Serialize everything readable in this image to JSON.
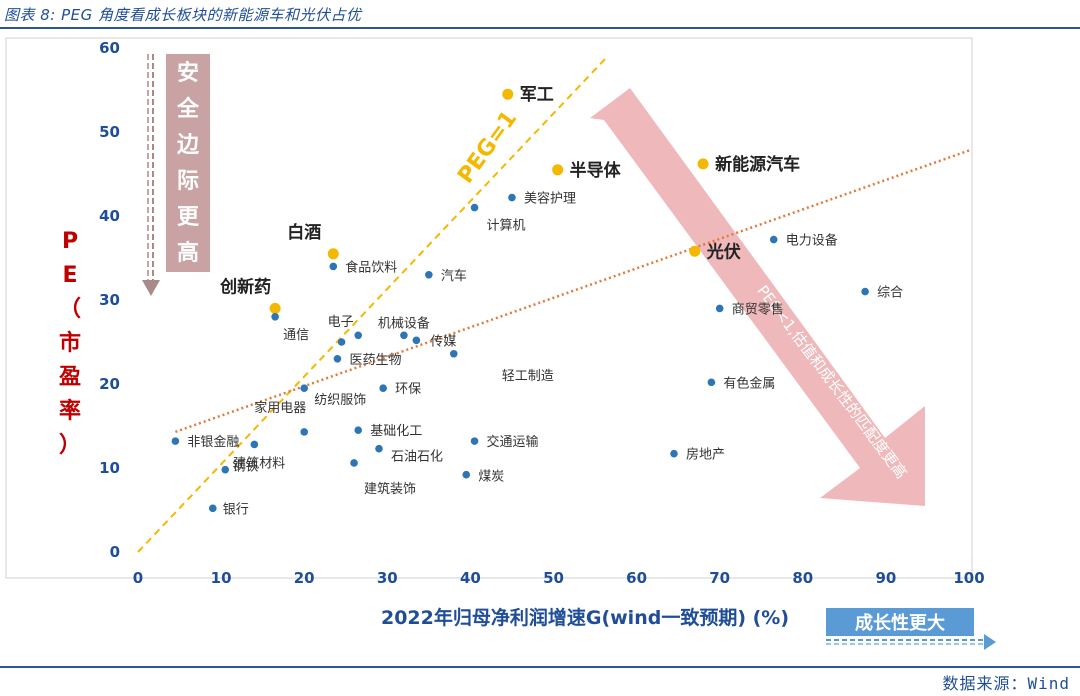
{
  "header": {
    "title": "图表 8: PEG 角度看成长板块的新能源车和光伏占优"
  },
  "footer": {
    "source": "数据来源：Wind"
  },
  "chart_data": {
    "type": "scatter",
    "title": "",
    "xlabel": "2022年归母净利润增速G(wind一致预期) (%)",
    "ylabel": "PE（市盈率）",
    "xlim": [
      0,
      100
    ],
    "ylim": [
      0,
      60
    ],
    "xticks": [
      0,
      10,
      20,
      30,
      40,
      50,
      60,
      70,
      80,
      90,
      100
    ],
    "yticks": [
      0,
      10,
      20,
      30,
      40,
      50,
      60
    ],
    "grid": false,
    "colors": {
      "normal": "#2e75b6",
      "highlight": "#f5b800",
      "peg_line": "#f5b800",
      "trend_line": "#e07b39",
      "arrow_red": "#e9a3a6",
      "arrow_blue": "#5b9bd5",
      "axis_text": "#1f4e96",
      "ylabel": "#c00000"
    },
    "points": [
      {
        "label": "军工",
        "x": 44.5,
        "y": 54.5,
        "highlight": true
      },
      {
        "label": "半导体",
        "x": 50.5,
        "y": 45.5,
        "highlight": true
      },
      {
        "label": "新能源汽车",
        "x": 68,
        "y": 46.2,
        "highlight": true
      },
      {
        "label": "白酒",
        "x": 23.5,
        "y": 35.5,
        "highlight": true
      },
      {
        "label": "创新药",
        "x": 16.5,
        "y": 29,
        "highlight": true
      },
      {
        "label": "光伏",
        "x": 67,
        "y": 35.8,
        "highlight": true
      },
      {
        "label": "美容护理",
        "x": 45,
        "y": 42.2,
        "highlight": false
      },
      {
        "label": "计算机",
        "x": 40.5,
        "y": 41,
        "highlight": false
      },
      {
        "label": "电力设备",
        "x": 76.5,
        "y": 37.2,
        "highlight": false
      },
      {
        "label": "食品饮料",
        "x": 23.5,
        "y": 34,
        "highlight": false
      },
      {
        "label": "汽车",
        "x": 35,
        "y": 33,
        "highlight": false
      },
      {
        "label": "综合",
        "x": 87.5,
        "y": 31,
        "highlight": false
      },
      {
        "label": "商贸零售",
        "x": 70,
        "y": 29,
        "highlight": false
      },
      {
        "label": "通信",
        "x": 16.5,
        "y": 28,
        "highlight": false
      },
      {
        "label": "电子",
        "x": 24.5,
        "y": 25,
        "highlight": false
      },
      {
        "label": "",
        "x": 26.5,
        "y": 25.8,
        "highlight": false
      },
      {
        "label": "机械设备",
        "x": 32,
        "y": 25.8,
        "highlight": false
      },
      {
        "label": "传媒",
        "x": 33.5,
        "y": 25.2,
        "highlight": false
      },
      {
        "label": "医药生物",
        "x": 24,
        "y": 23,
        "highlight": false
      },
      {
        "label": "轻工制造",
        "x": 38,
        "y": 23.6,
        "highlight": false
      },
      {
        "label": "纺织服饰",
        "x": 20,
        "y": 19.5,
        "highlight": false
      },
      {
        "label": "环保",
        "x": 29.5,
        "y": 19.5,
        "highlight": false
      },
      {
        "label": "有色金属",
        "x": 69,
        "y": 20.2,
        "highlight": false
      },
      {
        "label": "家用电器",
        "x": 20,
        "y": 14.3,
        "highlight": false
      },
      {
        "label": "基础化工",
        "x": 26.5,
        "y": 14.5,
        "highlight": false
      },
      {
        "label": "非银金融",
        "x": 4.5,
        "y": 13.2,
        "highlight": false
      },
      {
        "label": "钢铁",
        "x": 14,
        "y": 12.8,
        "highlight": false
      },
      {
        "label": "交通运输",
        "x": 40.5,
        "y": 13.2,
        "highlight": false
      },
      {
        "label": "石油石化",
        "x": 29,
        "y": 12.3,
        "highlight": false
      },
      {
        "label": "房地产",
        "x": 64.5,
        "y": 11.7,
        "highlight": false
      },
      {
        "label": "建筑材料",
        "x": 10.5,
        "y": 9.8,
        "highlight": false
      },
      {
        "label": "建筑装饰",
        "x": 26,
        "y": 10.6,
        "highlight": false
      },
      {
        "label": "煤炭",
        "x": 39.5,
        "y": 9.2,
        "highlight": false
      },
      {
        "label": "银行",
        "x": 9,
        "y": 5.2,
        "highlight": false
      }
    ],
    "peg_line": {
      "label": "PEG=1",
      "from": [
        0,
        0
      ],
      "to": [
        56.5,
        59
      ]
    },
    "trend_line": {
      "from": [
        4.5,
        14.3
      ],
      "to": [
        100,
        47.8
      ]
    },
    "annotations": {
      "safety": "安全边际更高",
      "peg_arrow": "PEG<1,估值和成长性的匹配度更高",
      "growth": "成长性更大"
    }
  }
}
